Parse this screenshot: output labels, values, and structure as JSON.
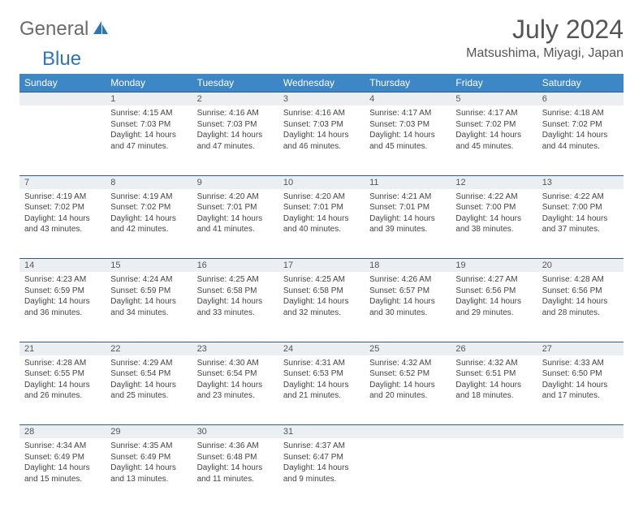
{
  "logo": {
    "text1": "General",
    "text2": "Blue"
  },
  "title": "July 2024",
  "location": "Matsushima, Miyagi, Japan",
  "colors": {
    "header_bg": "#3d87c7",
    "header_text": "#ffffff",
    "daynum_bg": "#eceff1",
    "row_border": "#2e5f8a",
    "logo_gray": "#6a6a6a",
    "logo_blue": "#2e75b6",
    "body_text": "#444444"
  },
  "weekdays": [
    "Sunday",
    "Monday",
    "Tuesday",
    "Wednesday",
    "Thursday",
    "Friday",
    "Saturday"
  ],
  "layout": {
    "first_weekday_index": 1,
    "days_in_month": 31
  },
  "days": {
    "1": {
      "sunrise": "4:15 AM",
      "sunset": "7:03 PM",
      "daylight": "14 hours and 47 minutes."
    },
    "2": {
      "sunrise": "4:16 AM",
      "sunset": "7:03 PM",
      "daylight": "14 hours and 47 minutes."
    },
    "3": {
      "sunrise": "4:16 AM",
      "sunset": "7:03 PM",
      "daylight": "14 hours and 46 minutes."
    },
    "4": {
      "sunrise": "4:17 AM",
      "sunset": "7:03 PM",
      "daylight": "14 hours and 45 minutes."
    },
    "5": {
      "sunrise": "4:17 AM",
      "sunset": "7:02 PM",
      "daylight": "14 hours and 45 minutes."
    },
    "6": {
      "sunrise": "4:18 AM",
      "sunset": "7:02 PM",
      "daylight": "14 hours and 44 minutes."
    },
    "7": {
      "sunrise": "4:19 AM",
      "sunset": "7:02 PM",
      "daylight": "14 hours and 43 minutes."
    },
    "8": {
      "sunrise": "4:19 AM",
      "sunset": "7:02 PM",
      "daylight": "14 hours and 42 minutes."
    },
    "9": {
      "sunrise": "4:20 AM",
      "sunset": "7:01 PM",
      "daylight": "14 hours and 41 minutes."
    },
    "10": {
      "sunrise": "4:20 AM",
      "sunset": "7:01 PM",
      "daylight": "14 hours and 40 minutes."
    },
    "11": {
      "sunrise": "4:21 AM",
      "sunset": "7:01 PM",
      "daylight": "14 hours and 39 minutes."
    },
    "12": {
      "sunrise": "4:22 AM",
      "sunset": "7:00 PM",
      "daylight": "14 hours and 38 minutes."
    },
    "13": {
      "sunrise": "4:22 AM",
      "sunset": "7:00 PM",
      "daylight": "14 hours and 37 minutes."
    },
    "14": {
      "sunrise": "4:23 AM",
      "sunset": "6:59 PM",
      "daylight": "14 hours and 36 minutes."
    },
    "15": {
      "sunrise": "4:24 AM",
      "sunset": "6:59 PM",
      "daylight": "14 hours and 34 minutes."
    },
    "16": {
      "sunrise": "4:25 AM",
      "sunset": "6:58 PM",
      "daylight": "14 hours and 33 minutes."
    },
    "17": {
      "sunrise": "4:25 AM",
      "sunset": "6:58 PM",
      "daylight": "14 hours and 32 minutes."
    },
    "18": {
      "sunrise": "4:26 AM",
      "sunset": "6:57 PM",
      "daylight": "14 hours and 30 minutes."
    },
    "19": {
      "sunrise": "4:27 AM",
      "sunset": "6:56 PM",
      "daylight": "14 hours and 29 minutes."
    },
    "20": {
      "sunrise": "4:28 AM",
      "sunset": "6:56 PM",
      "daylight": "14 hours and 28 minutes."
    },
    "21": {
      "sunrise": "4:28 AM",
      "sunset": "6:55 PM",
      "daylight": "14 hours and 26 minutes."
    },
    "22": {
      "sunrise": "4:29 AM",
      "sunset": "6:54 PM",
      "daylight": "14 hours and 25 minutes."
    },
    "23": {
      "sunrise": "4:30 AM",
      "sunset": "6:54 PM",
      "daylight": "14 hours and 23 minutes."
    },
    "24": {
      "sunrise": "4:31 AM",
      "sunset": "6:53 PM",
      "daylight": "14 hours and 21 minutes."
    },
    "25": {
      "sunrise": "4:32 AM",
      "sunset": "6:52 PM",
      "daylight": "14 hours and 20 minutes."
    },
    "26": {
      "sunrise": "4:32 AM",
      "sunset": "6:51 PM",
      "daylight": "14 hours and 18 minutes."
    },
    "27": {
      "sunrise": "4:33 AM",
      "sunset": "6:50 PM",
      "daylight": "14 hours and 17 minutes."
    },
    "28": {
      "sunrise": "4:34 AM",
      "sunset": "6:49 PM",
      "daylight": "14 hours and 15 minutes."
    },
    "29": {
      "sunrise": "4:35 AM",
      "sunset": "6:49 PM",
      "daylight": "14 hours and 13 minutes."
    },
    "30": {
      "sunrise": "4:36 AM",
      "sunset": "6:48 PM",
      "daylight": "14 hours and 11 minutes."
    },
    "31": {
      "sunrise": "4:37 AM",
      "sunset": "6:47 PM",
      "daylight": "14 hours and 9 minutes."
    }
  },
  "labels": {
    "sunrise_prefix": "Sunrise: ",
    "sunset_prefix": "Sunset: ",
    "daylight_prefix": "Daylight: "
  }
}
